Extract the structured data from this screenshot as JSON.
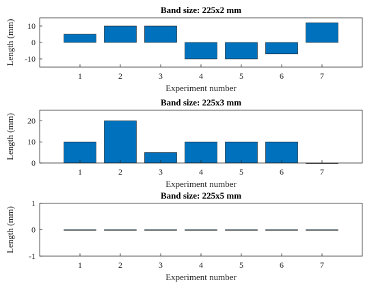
{
  "chart_data": [
    {
      "type": "bar",
      "title": "Band size: 225x2 mm",
      "xlabel": "Experiment number",
      "ylabel": "Length (mm)",
      "categories": [
        "1",
        "2",
        "3",
        "4",
        "5",
        "6",
        "7"
      ],
      "values": [
        5,
        10,
        10,
        -10,
        -10,
        -7,
        12
      ],
      "ylim": [
        -15,
        15
      ],
      "yticks": [
        "-10",
        "0",
        "10"
      ],
      "xlim": [
        0,
        8
      ],
      "grid": false,
      "bar_color": "#0072BD"
    },
    {
      "type": "bar",
      "title": "Band size: 225x3 mm",
      "xlabel": "Experiment number",
      "ylabel": "Length (mm)",
      "categories": [
        "1",
        "2",
        "3",
        "4",
        "5",
        "6",
        "7"
      ],
      "values": [
        10,
        20,
        5,
        10,
        10,
        10,
        0
      ],
      "ylim": [
        0,
        25
      ],
      "yticks": [
        "0",
        "10",
        "20"
      ],
      "xlim": [
        0,
        8
      ],
      "grid": false,
      "bar_color": "#0072BD"
    },
    {
      "type": "bar",
      "title": "Band size: 225x5 mm",
      "xlabel": "Experiment number",
      "ylabel": "Length (mm)",
      "categories": [
        "1",
        "2",
        "3",
        "4",
        "5",
        "6",
        "7"
      ],
      "values": [
        0,
        0,
        0,
        0,
        0,
        0,
        0
      ],
      "ylim": [
        -1,
        1
      ],
      "yticks": [
        "-1",
        "0",
        "1"
      ],
      "xlim": [
        0,
        8
      ],
      "grid": false,
      "bar_color": "#0072BD"
    }
  ]
}
